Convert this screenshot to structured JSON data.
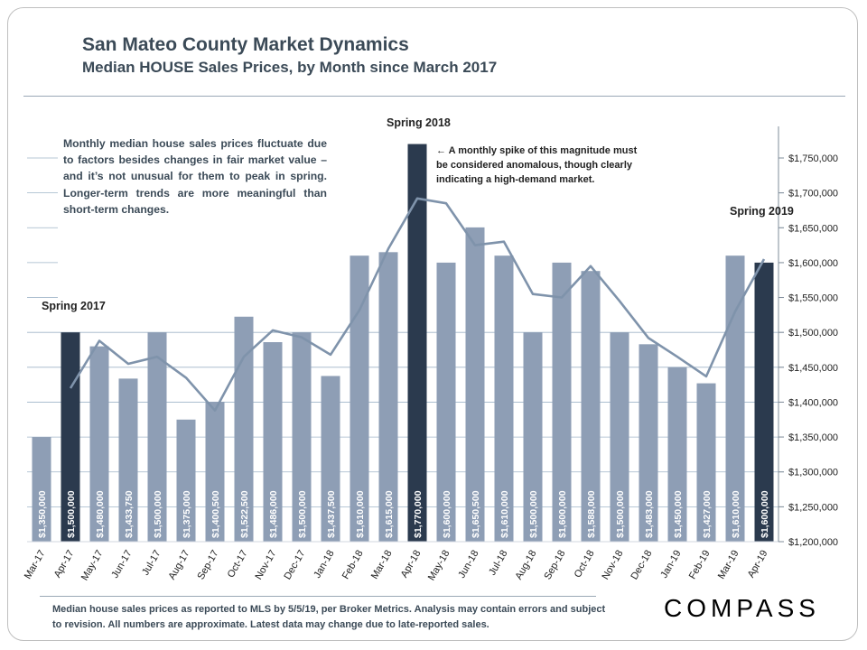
{
  "header": {
    "title": "San Mateo County Market Dynamics",
    "subtitle": "Median HOUSE Sales Prices, by Month since March 2017"
  },
  "note_text": "Monthly median house sales prices fluctuate due to factors besides changes in fair market value – and it’s not unusual for them to peak in spring. Longer-term trends are more meaningful than short-term changes.",
  "annotation_text": "← A monthly spike of this magnitude must be considered anomalous, though clearly indicating a high-demand market.",
  "footnote": "Median house sales prices as reported to MLS by 5/5/19, per Broker Metrics. Analysis may contain errors and subject to revision. All numbers are approximate. Latest data may change due to late-reported sales.",
  "logo_text": "COMPASS",
  "colors": {
    "bar": "#8e9eb5",
    "bar_highlight": "#2b3a4e",
    "trend_line": "#7f93ab",
    "bar_label": "#ffffff",
    "gridline": "#9fb5c8"
  },
  "chart_data": {
    "type": "bar",
    "categories": [
      "Mar-17",
      "Apr-17",
      "May-17",
      "Jun-17",
      "Jul-17",
      "Aug-17",
      "Sep-17",
      "Oct-17",
      "Nov-17",
      "Dec-17",
      "Jan-18",
      "Feb-18",
      "Mar-18",
      "Apr-18",
      "May-18",
      "Jun-18",
      "Jul-18",
      "Aug-18",
      "Sep-18",
      "Oct-18",
      "Nov-18",
      "Dec-18",
      "Jan-19",
      "Feb-19",
      "Mar-19",
      "Apr-19"
    ],
    "values": [
      1350000,
      1500000,
      1480000,
      1433750,
      1500000,
      1375000,
      1400500,
      1522500,
      1486000,
      1500000,
      1437500,
      1610000,
      1615000,
      1770000,
      1600000,
      1650500,
      1610000,
      1500000,
      1600000,
      1588000,
      1500000,
      1483000,
      1450000,
      1427000,
      1610000,
      1600000
    ],
    "value_labels": [
      "$1,350,000",
      "$1,500,000",
      "$1,480,000",
      "$1,433,750",
      "$1,500,000",
      "$1,375,000",
      "$1,400,500",
      "$1,522,500",
      "$1,486,000",
      "$1,500,000",
      "$1,437,500",
      "$1,610,000",
      "$1,615,000",
      "$1,770,000",
      "$1,600,000",
      "$1,650,500",
      "$1,610,000",
      "$1,500,000",
      "$1,600,000",
      "$1,588,000",
      "$1,500,000",
      "$1,483,000",
      "$1,450,000",
      "$1,427,000",
      "$1,610,000",
      "$1,600,000"
    ],
    "highlight_categories": [
      "Apr-17",
      "Apr-18",
      "Apr-19"
    ],
    "trend_line": {
      "x": [
        "Apr-17",
        "May-17",
        "Jun-17",
        "Jul-17",
        "Aug-17",
        "Sep-17",
        "Oct-17",
        "Nov-17",
        "Dec-17",
        "Jan-18",
        "Feb-18",
        "Mar-18",
        "Apr-18",
        "May-18",
        "Jun-18",
        "Jul-18",
        "Aug-18",
        "Sep-18",
        "Oct-18",
        "Nov-18",
        "Dec-18",
        "Jan-19",
        "Feb-19",
        "Mar-19",
        "Apr-19"
      ],
      "values": [
        1420000,
        1488000,
        1455000,
        1465000,
        1435000,
        1388000,
        1465000,
        1503000,
        1493000,
        1468000,
        1532000,
        1620000,
        1692000,
        1685000,
        1625000,
        1630000,
        1555000,
        1550000,
        1595000,
        1545000,
        1492000,
        1465000,
        1437000,
        1530000,
        1605000
      ]
    },
    "ylim": [
      1200000,
      1775000
    ],
    "y_ticks": [
      1200000,
      1250000,
      1300000,
      1350000,
      1400000,
      1450000,
      1500000,
      1550000,
      1600000,
      1650000,
      1700000,
      1750000
    ],
    "y_tick_labels": [
      "$1,200,000",
      "$1,250,000",
      "$1,300,000",
      "$1,350,000",
      "$1,400,000",
      "$1,450,000",
      "$1,500,000",
      "$1,550,000",
      "$1,600,000",
      "$1,650,000",
      "$1,700,000",
      "$1,750,000"
    ],
    "y_axis_side": "right",
    "grid": true,
    "annotations": [
      {
        "category": "Apr-17",
        "text": "Spring 2017"
      },
      {
        "category": "Apr-18",
        "text": "Spring 2018"
      },
      {
        "category": "Apr-19",
        "text": "Spring 2019"
      }
    ]
  }
}
